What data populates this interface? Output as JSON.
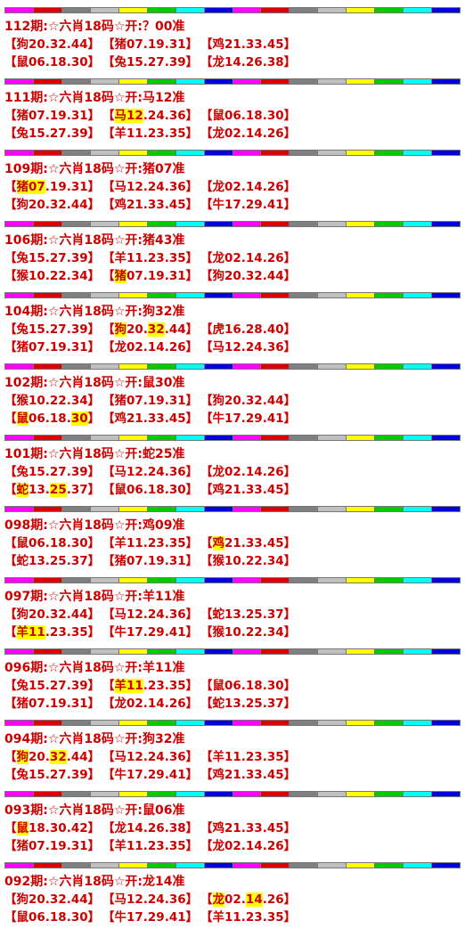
{
  "records": [
    {
      "header": "112期:☆六肖18码☆开:？00准",
      "rows": [
        [
          [
            "【狗20.32.44】"
          ],
          [
            "【猪07.19.31】"
          ],
          [
            "【鸡21.33.45】"
          ]
        ],
        [
          [
            "【鼠06.18.30】"
          ],
          [
            "【兔15.27.39】"
          ],
          [
            "【龙14.26.38】"
          ]
        ]
      ]
    },
    {
      "header": "111期:☆六肖18码☆开:马12准",
      "rows": [
        [
          [
            "【猪07.19.31】"
          ],
          [
            "【",
            {
              "text": "马12",
              "highlight": true
            },
            ".24.36】"
          ],
          [
            "【鼠06.18.30】"
          ]
        ],
        [
          [
            "【兔15.27.39】"
          ],
          [
            "【羊11.23.35】"
          ],
          [
            "【龙02.14.26】"
          ]
        ]
      ]
    },
    {
      "header": "109期:☆六肖18码☆开:猪07准",
      "rows": [
        [
          [
            "【",
            {
              "text": "猪07",
              "highlight": true
            },
            ".19.31】"
          ],
          [
            "【马12.24.36】"
          ],
          [
            "【龙02.14.26】"
          ]
        ],
        [
          [
            "【狗20.32.44】"
          ],
          [
            "【鸡21.33.45】"
          ],
          [
            "【牛17.29.41】"
          ]
        ]
      ]
    },
    {
      "header": "106期:☆六肖18码☆开:猪43准",
      "rows": [
        [
          [
            "【兔15.27.39】"
          ],
          [
            "【羊11.23.35】"
          ],
          [
            "【龙02.14.26】"
          ]
        ],
        [
          [
            "【猴10.22.34】"
          ],
          [
            "【",
            {
              "text": "猪",
              "highlight": true
            },
            "07.19.31】"
          ],
          [
            "【狗20.32.44】"
          ]
        ]
      ]
    },
    {
      "header": "104期:☆六肖18码☆开:狗32准",
      "rows": [
        [
          [
            "【兔15.27.39】"
          ],
          [
            "【",
            {
              "text": "狗",
              "highlight": true
            },
            "20.",
            {
              "text": "32",
              "highlight": true
            },
            ".44】"
          ],
          [
            "【虎16.28.40】"
          ]
        ],
        [
          [
            "【猪07.19.31】"
          ],
          [
            "【龙02.14.26】"
          ],
          [
            "【马12.24.36】"
          ]
        ]
      ]
    },
    {
      "header": "102期:☆六肖18码☆开:鼠30准",
      "rows": [
        [
          [
            "【猴10.22.34】"
          ],
          [
            "【猪07.19.31】"
          ],
          [
            "【狗20.32.44】"
          ]
        ],
        [
          [
            "【",
            {
              "text": "鼠",
              "highlight": true
            },
            "06.18.",
            {
              "text": "30",
              "highlight": true
            },
            "】"
          ],
          [
            "【鸡21.33.45】"
          ],
          [
            "【牛17.29.41】"
          ]
        ]
      ]
    },
    {
      "header": "101期:☆六肖18码☆开:蛇25准",
      "rows": [
        [
          [
            "【兔15.27.39】"
          ],
          [
            "【马12.24.36】"
          ],
          [
            "【龙02.14.26】"
          ]
        ],
        [
          [
            "【",
            {
              "text": "蛇",
              "highlight": true
            },
            "13.",
            {
              "text": "25",
              "highlight": true
            },
            ".37】"
          ],
          [
            "【鼠06.18.30】"
          ],
          [
            "【鸡21.33.45】"
          ]
        ]
      ]
    },
    {
      "header": "098期:☆六肖18码☆开:鸡09准",
      "rows": [
        [
          [
            "【鼠06.18.30】"
          ],
          [
            "【羊11.23.35】"
          ],
          [
            "【",
            {
              "text": "鸡",
              "highlight": true
            },
            "21.33.45】"
          ]
        ],
        [
          [
            "【蛇13.25.37】"
          ],
          [
            "【猪07.19.31】"
          ],
          [
            "【猴10.22.34】"
          ]
        ]
      ]
    },
    {
      "header": "097期:☆六肖18码☆开:羊11准",
      "rows": [
        [
          [
            "【狗20.32.44】"
          ],
          [
            "【马12.24.36】"
          ],
          [
            "【蛇13.25.37】"
          ]
        ],
        [
          [
            "【",
            {
              "text": "羊11",
              "highlight": true
            },
            ".23.35】"
          ],
          [
            "【牛17.29.41】"
          ],
          [
            "【猴10.22.34】"
          ]
        ]
      ]
    },
    {
      "header": "096期:☆六肖18码☆开:羊11准",
      "rows": [
        [
          [
            "【兔15.27.39】"
          ],
          [
            "【",
            {
              "text": "羊11",
              "highlight": true
            },
            ".23.35】"
          ],
          [
            "【鼠06.18.30】"
          ]
        ],
        [
          [
            "【猪07.19.31】"
          ],
          [
            "【龙02.14.26】"
          ],
          [
            "【蛇13.25.37】"
          ]
        ]
      ]
    },
    {
      "header": "094期:☆六肖18码☆开:狗32准",
      "rows": [
        [
          [
            "【",
            {
              "text": "狗",
              "highlight": true
            },
            "20.",
            {
              "text": "32",
              "highlight": true
            },
            ".44】"
          ],
          [
            "【马12.24.36】"
          ],
          [
            "【羊11.23.35】"
          ]
        ],
        [
          [
            "【兔15.27.39】"
          ],
          [
            "【牛17.29.41】"
          ],
          [
            "【鸡21.33.45】"
          ]
        ]
      ]
    },
    {
      "header": "093期:☆六肖18码☆开:鼠06准",
      "rows": [
        [
          [
            "【",
            {
              "text": "鼠",
              "highlight": true
            },
            "18.30.42】"
          ],
          [
            "【龙14.26.38】"
          ],
          [
            "【鸡21.33.45】"
          ]
        ],
        [
          [
            "【猪07.19.31】"
          ],
          [
            "【羊11.23.35】"
          ],
          [
            "【龙02.14.26】"
          ]
        ]
      ]
    },
    {
      "header": "092期:☆六肖18码☆开:龙14准",
      "rows": [
        [
          [
            "【狗20.32.44】"
          ],
          [
            "【马12.24.36】"
          ],
          [
            "【",
            {
              "text": "龙",
              "highlight": true
            },
            "02.",
            {
              "text": "14",
              "highlight": true
            },
            ".26】"
          ]
        ],
        [
          [
            "【鼠06.18.30】"
          ],
          [
            "【牛17.29.41】"
          ],
          [
            "【羊11.23.35】"
          ]
        ]
      ]
    }
  ]
}
